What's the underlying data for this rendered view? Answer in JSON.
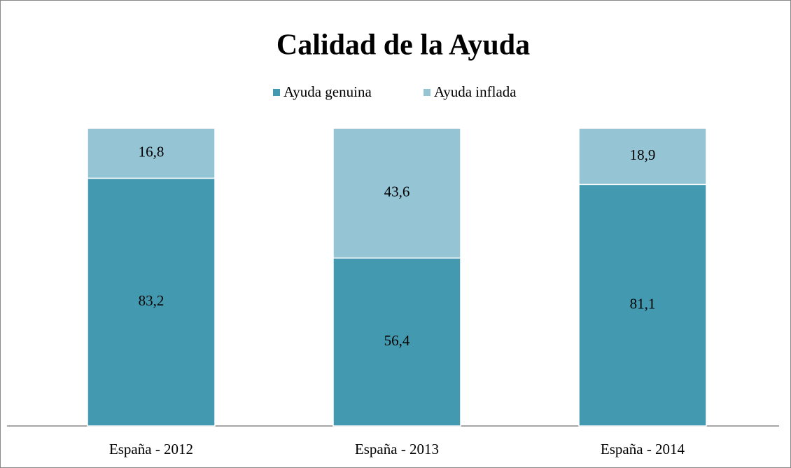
{
  "chart_data": {
    "type": "stacked_bar",
    "title": "Calidad de la Ayuda",
    "categories": [
      "España - 2012",
      "España - 2013",
      "España - 2014"
    ],
    "series": [
      {
        "name": "Ayuda genuina",
        "color": "#4399b0",
        "values": [
          83.2,
          56.4,
          81.1
        ],
        "value_labels": [
          "83,2",
          "56,4",
          "81,1"
        ]
      },
      {
        "name": "Ayuda inflada",
        "color": "#95c4d5",
        "values": [
          16.8,
          43.6,
          18.9
        ],
        "value_labels": [
          "16,8",
          "43,6",
          "18,9"
        ]
      }
    ],
    "legend": "top"
  }
}
